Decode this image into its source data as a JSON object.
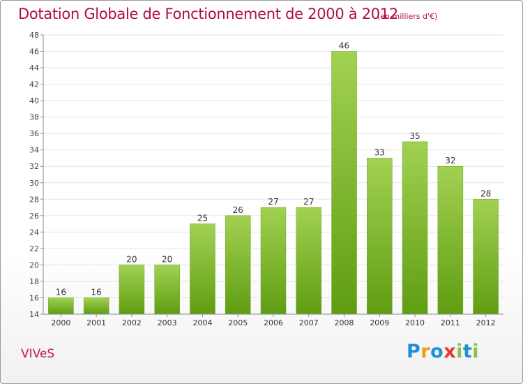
{
  "header": {
    "title": "Dotation Globale de Fonctionnement de 2000 à 2012",
    "unit": "(en milliers d'€)"
  },
  "footer": {
    "commune": "VIVeS",
    "logo": {
      "text": "Proxiti",
      "letters": [
        {
          "char": "P",
          "color": "#1e90d8"
        },
        {
          "char": "r",
          "color": "#f39c12"
        },
        {
          "char": "o",
          "color": "#1e90d8"
        },
        {
          "char": "x",
          "color": "#e53935"
        },
        {
          "char": "i",
          "color": "#8bc34a"
        },
        {
          "char": "t",
          "color": "#1e90d8"
        },
        {
          "char": "i",
          "color": "#8bc34a"
        }
      ]
    }
  },
  "colors": {
    "bar_light": "#a2d152",
    "bar_dark": "#5f9d12",
    "title": "#b0103a",
    "grid": "#e3e3e3",
    "axis": "#8c8c8c"
  },
  "chart_data": {
    "type": "bar",
    "title": "Dotation Globale de Fonctionnement de 2000 à 2012",
    "subtitle": "(en milliers d'€)",
    "xlabel": "",
    "ylabel": "",
    "categories": [
      "2000",
      "2001",
      "2002",
      "2003",
      "2004",
      "2005",
      "2006",
      "2007",
      "2008",
      "2009",
      "2010",
      "2011",
      "2012"
    ],
    "values": [
      16,
      16,
      20,
      20,
      25,
      26,
      27,
      27,
      46,
      33,
      35,
      32,
      28
    ],
    "ylim": [
      14,
      48
    ],
    "ytick_step": 2,
    "grid": true,
    "data_labels": true
  }
}
